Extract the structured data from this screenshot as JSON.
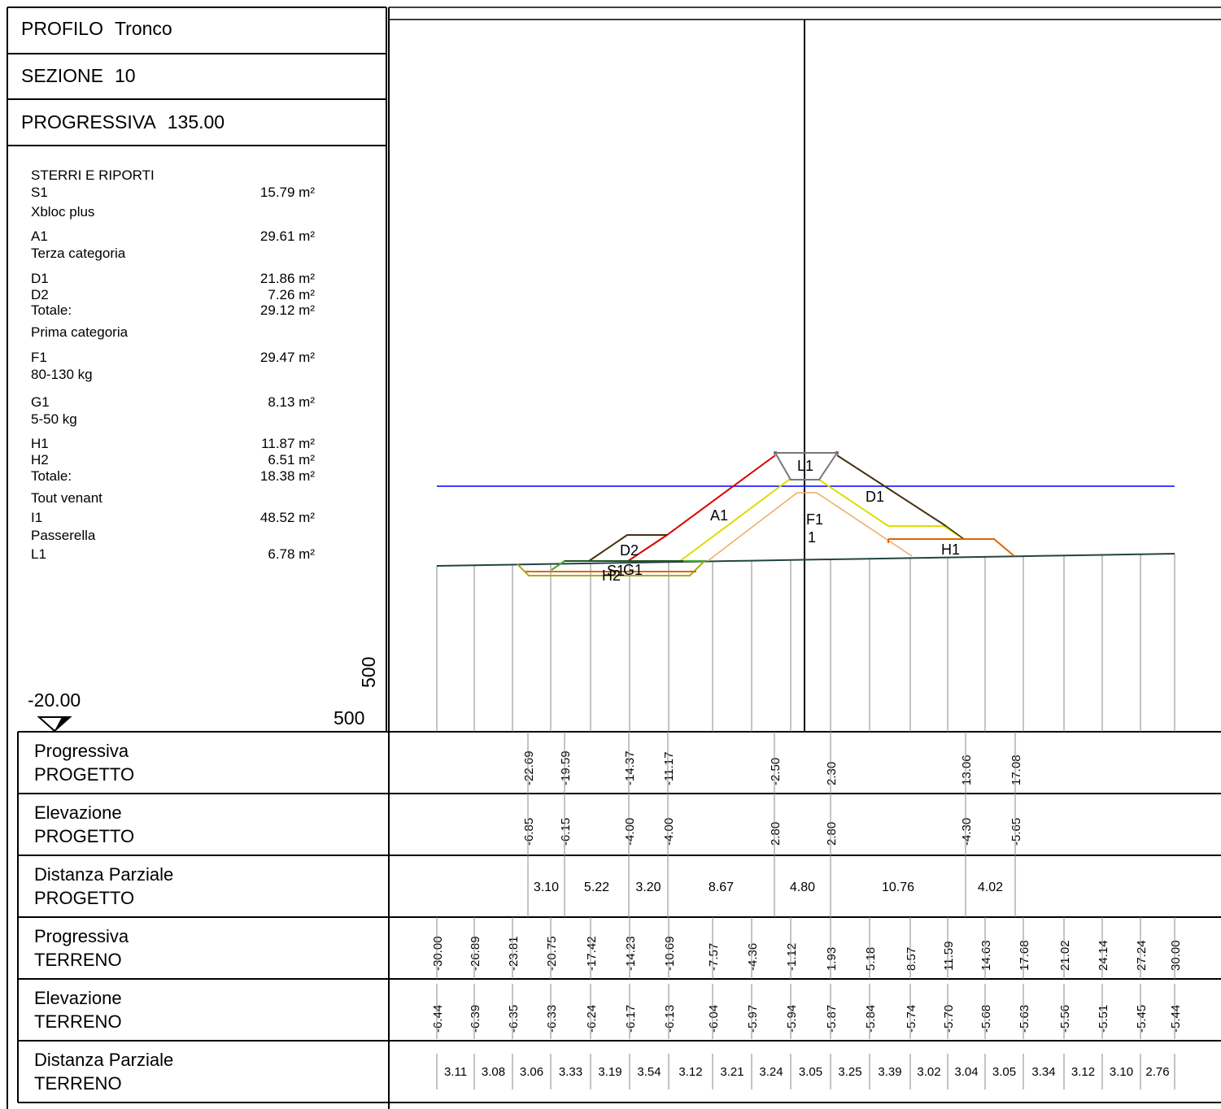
{
  "header": {
    "profilo_label": "PROFILO",
    "profilo_value": "Tronco",
    "sezione_label": "SEZIONE",
    "sezione_value": "10",
    "progressiva_label": "PROGRESSIVA",
    "progressiva_value": "135.00"
  },
  "volumes": [
    {
      "name": "STERRI E RIPORTI",
      "value": ""
    },
    {
      "name": "S1",
      "value": "15.79 m²"
    },
    {
      "name": "Xbloc plus",
      "value": ""
    },
    {
      "name": "A1",
      "value": "29.61 m²"
    },
    {
      "name": "Terza categoria",
      "value": ""
    },
    {
      "name": "D1",
      "value": "21.86 m²"
    },
    {
      "name": "D2",
      "value": "7.26 m²"
    },
    {
      "name": "Totale:",
      "value": "29.12 m²"
    },
    {
      "name": "Prima categoria",
      "value": ""
    },
    {
      "name": "F1",
      "value": "29.47 m²"
    },
    {
      "name": "80-130 kg",
      "value": ""
    },
    {
      "name": "G1",
      "value": "8.13 m²"
    },
    {
      "name": "5-50 kg",
      "value": ""
    },
    {
      "name": "H1",
      "value": "11.87 m²"
    },
    {
      "name": "H2",
      "value": "6.51 m²"
    },
    {
      "name": "Totale:",
      "value": "18.38 m²"
    },
    {
      "name": "Tout venant",
      "value": ""
    },
    {
      "name": "I1",
      "value": "48.52 m²"
    },
    {
      "name": "Passerella",
      "value": ""
    },
    {
      "name": "L1",
      "value": "6.78 m²"
    }
  ],
  "datum": {
    "elevation": "-20.00",
    "scale_h": "500",
    "scale_v": "500"
  },
  "layer_labels": [
    {
      "text": "L1",
      "color": "#000000"
    },
    {
      "text": "D1",
      "color": "#000000"
    },
    {
      "text": "A1",
      "color": "#000000"
    },
    {
      "text": "F1",
      "color": "#000000"
    },
    {
      "text": "1",
      "color": "#000000"
    },
    {
      "text": "H1",
      "color": "#000000"
    },
    {
      "text": "D2",
      "color": "#000000"
    },
    {
      "text": "S1",
      "color": "#000000"
    },
    {
      "text": "G1",
      "color": "#000000"
    },
    {
      "text": "H2",
      "color": "#000000"
    }
  ],
  "colors": {
    "sea_level": "#0000ff",
    "terrain": "#224444",
    "armour_A1": "#dd0000",
    "filter_F1_edge": "#dddd00",
    "core_I1": "#eeaa66",
    "toe_H": "#dd6600",
    "D_layer": "#443311",
    "G_layer": "#44aa22",
    "passerella": "#777777"
  },
  "table": {
    "rows": [
      {
        "label1": "Progressiva",
        "label2": "PROGETTO",
        "values": [
          "-22.69",
          "-19.59",
          "-14.37",
          "-11.17",
          "-2.50",
          "2.30",
          "13.06",
          "17.08"
        ]
      },
      {
        "label1": "Elevazione",
        "label2": "PROGETTO",
        "values": [
          "-6.85",
          "-6.15",
          "-4.00",
          "-4.00",
          "2.80",
          "2.80",
          "-4.30",
          "-5.65"
        ]
      },
      {
        "label1": "Distanza Parziale",
        "label2": "PROGETTO",
        "values": [
          "3.10",
          "5.22",
          "3.20",
          "8.67",
          "4.80",
          "10.76",
          "4.02"
        ]
      },
      {
        "label1": "Progressiva",
        "label2": "TERRENO",
        "values": [
          "-30.00",
          "-26.89",
          "-23.81",
          "-20.75",
          "-17.42",
          "-14.23",
          "-10.69",
          "-7.57",
          "-4.36",
          "-1.12",
          "1.93",
          "5.18",
          "8.57",
          "11.59",
          "14.63",
          "17.68",
          "21.02",
          "24.14",
          "27.24",
          "30.00"
        ]
      },
      {
        "label1": "Elevazione",
        "label2": "TERRENO",
        "values": [
          "-6.44",
          "-6.39",
          "-6.35",
          "-6.33",
          "-6.24",
          "-6.17",
          "-6.13",
          "-6.04",
          "-5.97",
          "-5.94",
          "-5.87",
          "-5.84",
          "-5.74",
          "-5.70",
          "-5.68",
          "-5.63",
          "-5.56",
          "-5.51",
          "-5.45",
          "-5.44"
        ]
      },
      {
        "label1": "Distanza Parziale",
        "label2": "TERRENO",
        "values": [
          "3.11",
          "3.08",
          "3.06",
          "3.33",
          "3.19",
          "3.54",
          "3.12",
          "3.21",
          "3.24",
          "3.05",
          "3.25",
          "3.39",
          "3.02",
          "3.04",
          "3.05",
          "3.34",
          "3.12",
          "3.10",
          "2.76"
        ]
      }
    ]
  }
}
